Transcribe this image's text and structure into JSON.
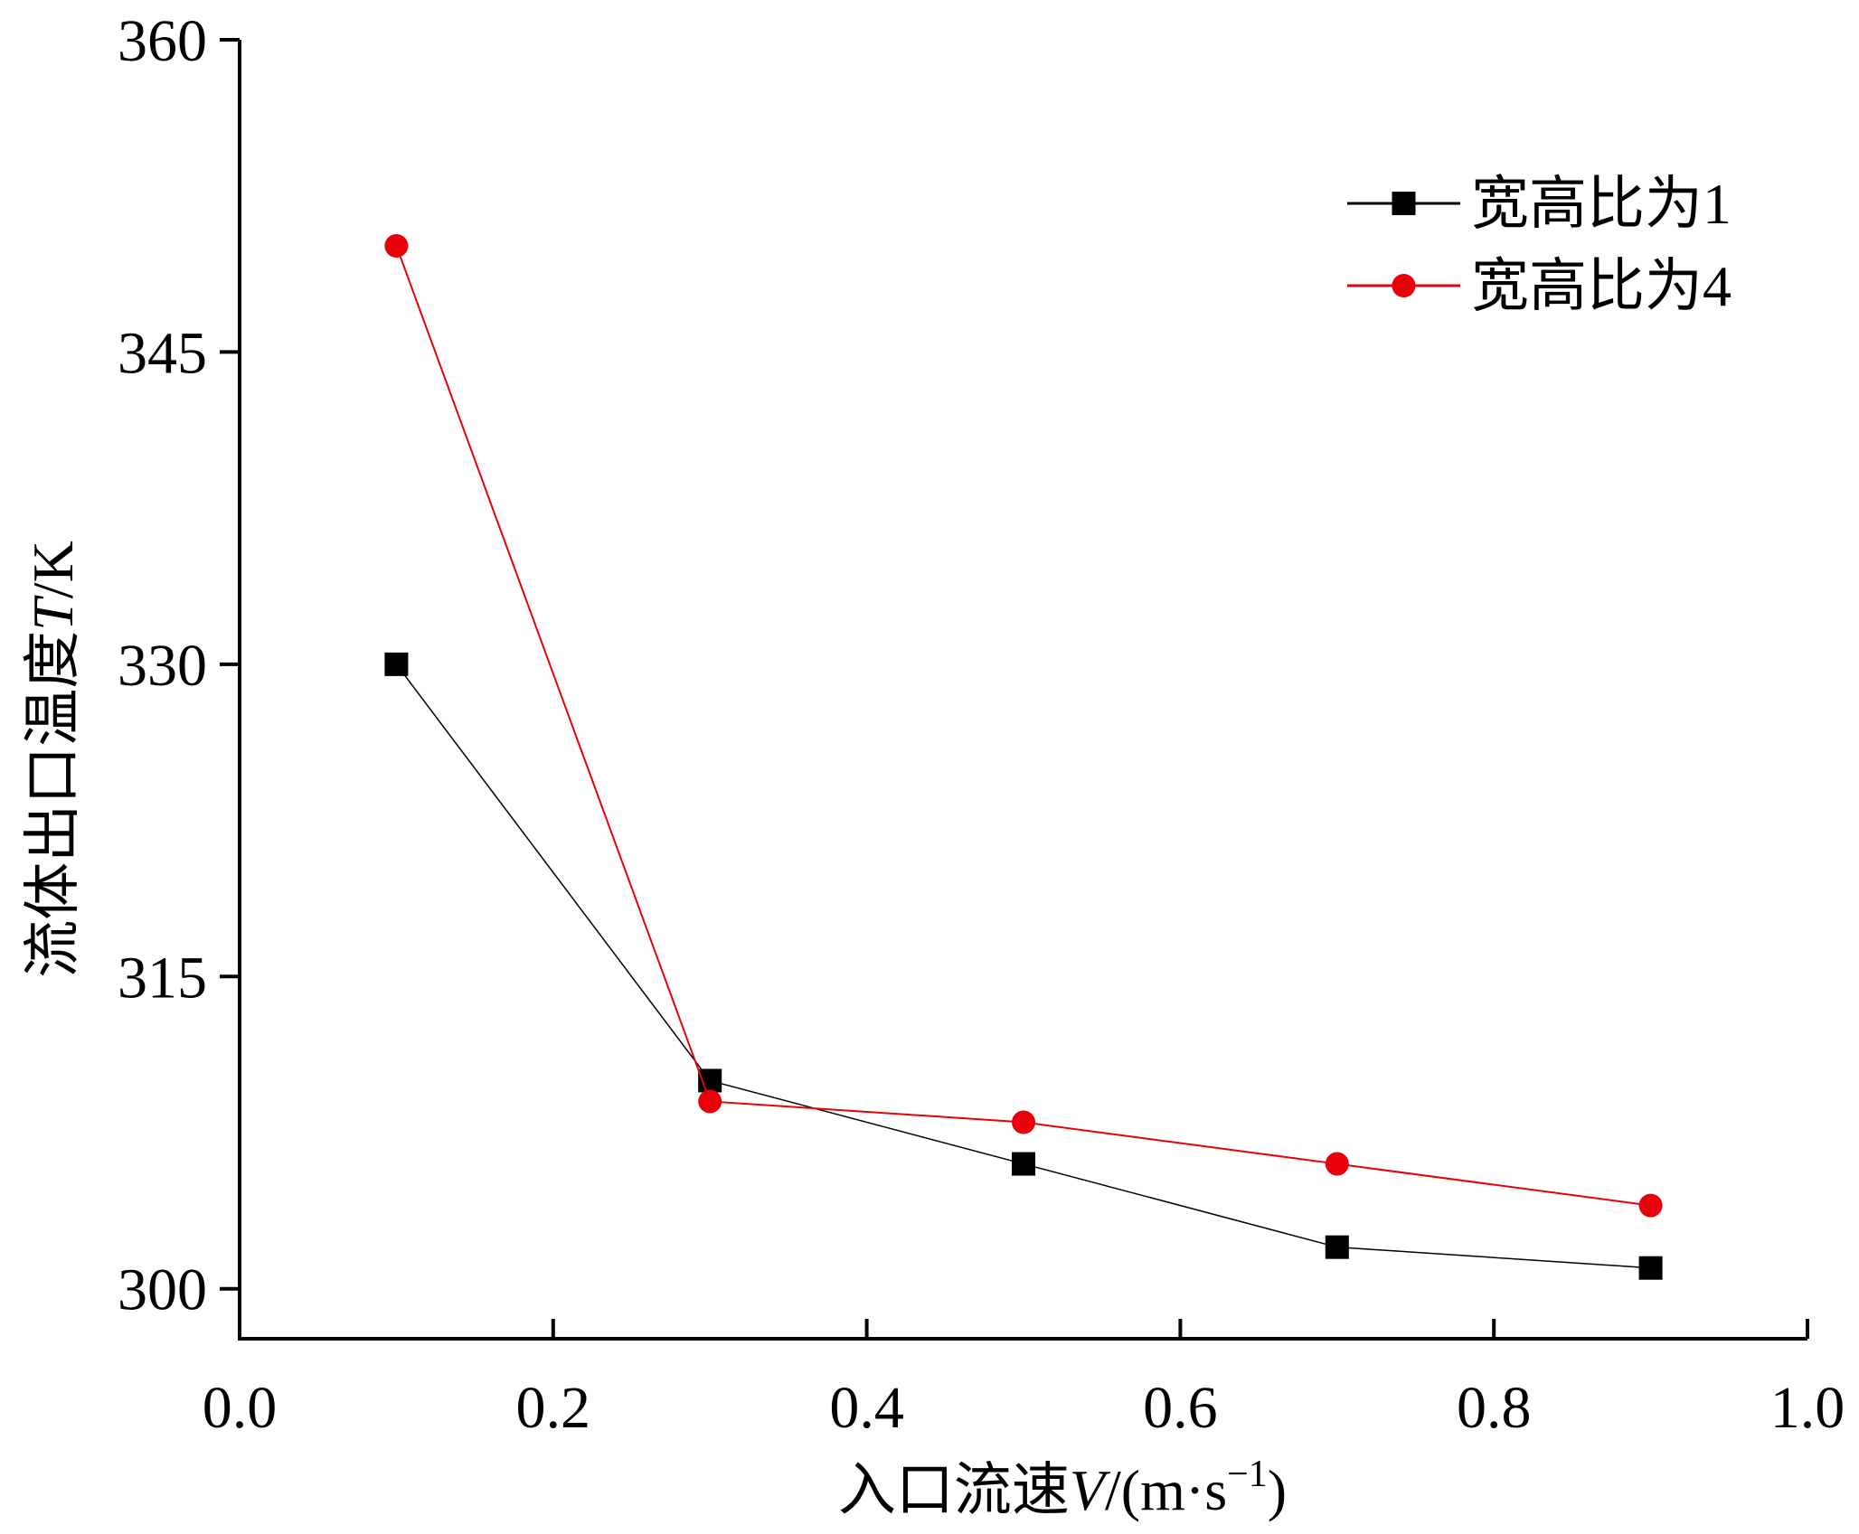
{
  "chart_data": {
    "type": "line",
    "title": "",
    "xlabel": {
      "prefix": "入口流速",
      "symbol": "V",
      "unit": "/(m·s",
      "exponent": "−1",
      "close": ")"
    },
    "ylabel": {
      "prefix": "流体出口温度",
      "symbol": "T",
      "unit": "/K"
    },
    "xlim": [
      0,
      1.0
    ],
    "ylim": [
      297.6,
      360
    ],
    "x_ticks": [
      {
        "value": 0.0,
        "label": "0.0"
      },
      {
        "value": 0.2,
        "label": "0.2"
      },
      {
        "value": 0.4,
        "label": "0.4"
      },
      {
        "value": 0.6,
        "label": "0.6"
      },
      {
        "value": 0.8,
        "label": "0.8"
      },
      {
        "value": 1.0,
        "label": "1.0"
      }
    ],
    "y_ticks": [
      {
        "value": 300,
        "label": "300"
      },
      {
        "value": 315,
        "label": "315"
      },
      {
        "value": 330,
        "label": "330"
      },
      {
        "value": 345,
        "label": "345"
      },
      {
        "value": 360,
        "label": "360"
      }
    ],
    "grid": false,
    "legend_position": "top-right",
    "series": [
      {
        "name": "宽高比为1",
        "color": "#000000",
        "marker": "square",
        "x": [
          0.1,
          0.3,
          0.5,
          0.7,
          0.9
        ],
        "y": [
          330.0,
          310.0,
          306.0,
          302.0,
          301.0
        ]
      },
      {
        "name": "宽高比为4",
        "color": "#e8000b",
        "marker": "circle",
        "x": [
          0.1,
          0.3,
          0.5,
          0.7,
          0.9
        ],
        "y": [
          350.1,
          309.0,
          308.0,
          306.0,
          304.0
        ]
      }
    ]
  }
}
